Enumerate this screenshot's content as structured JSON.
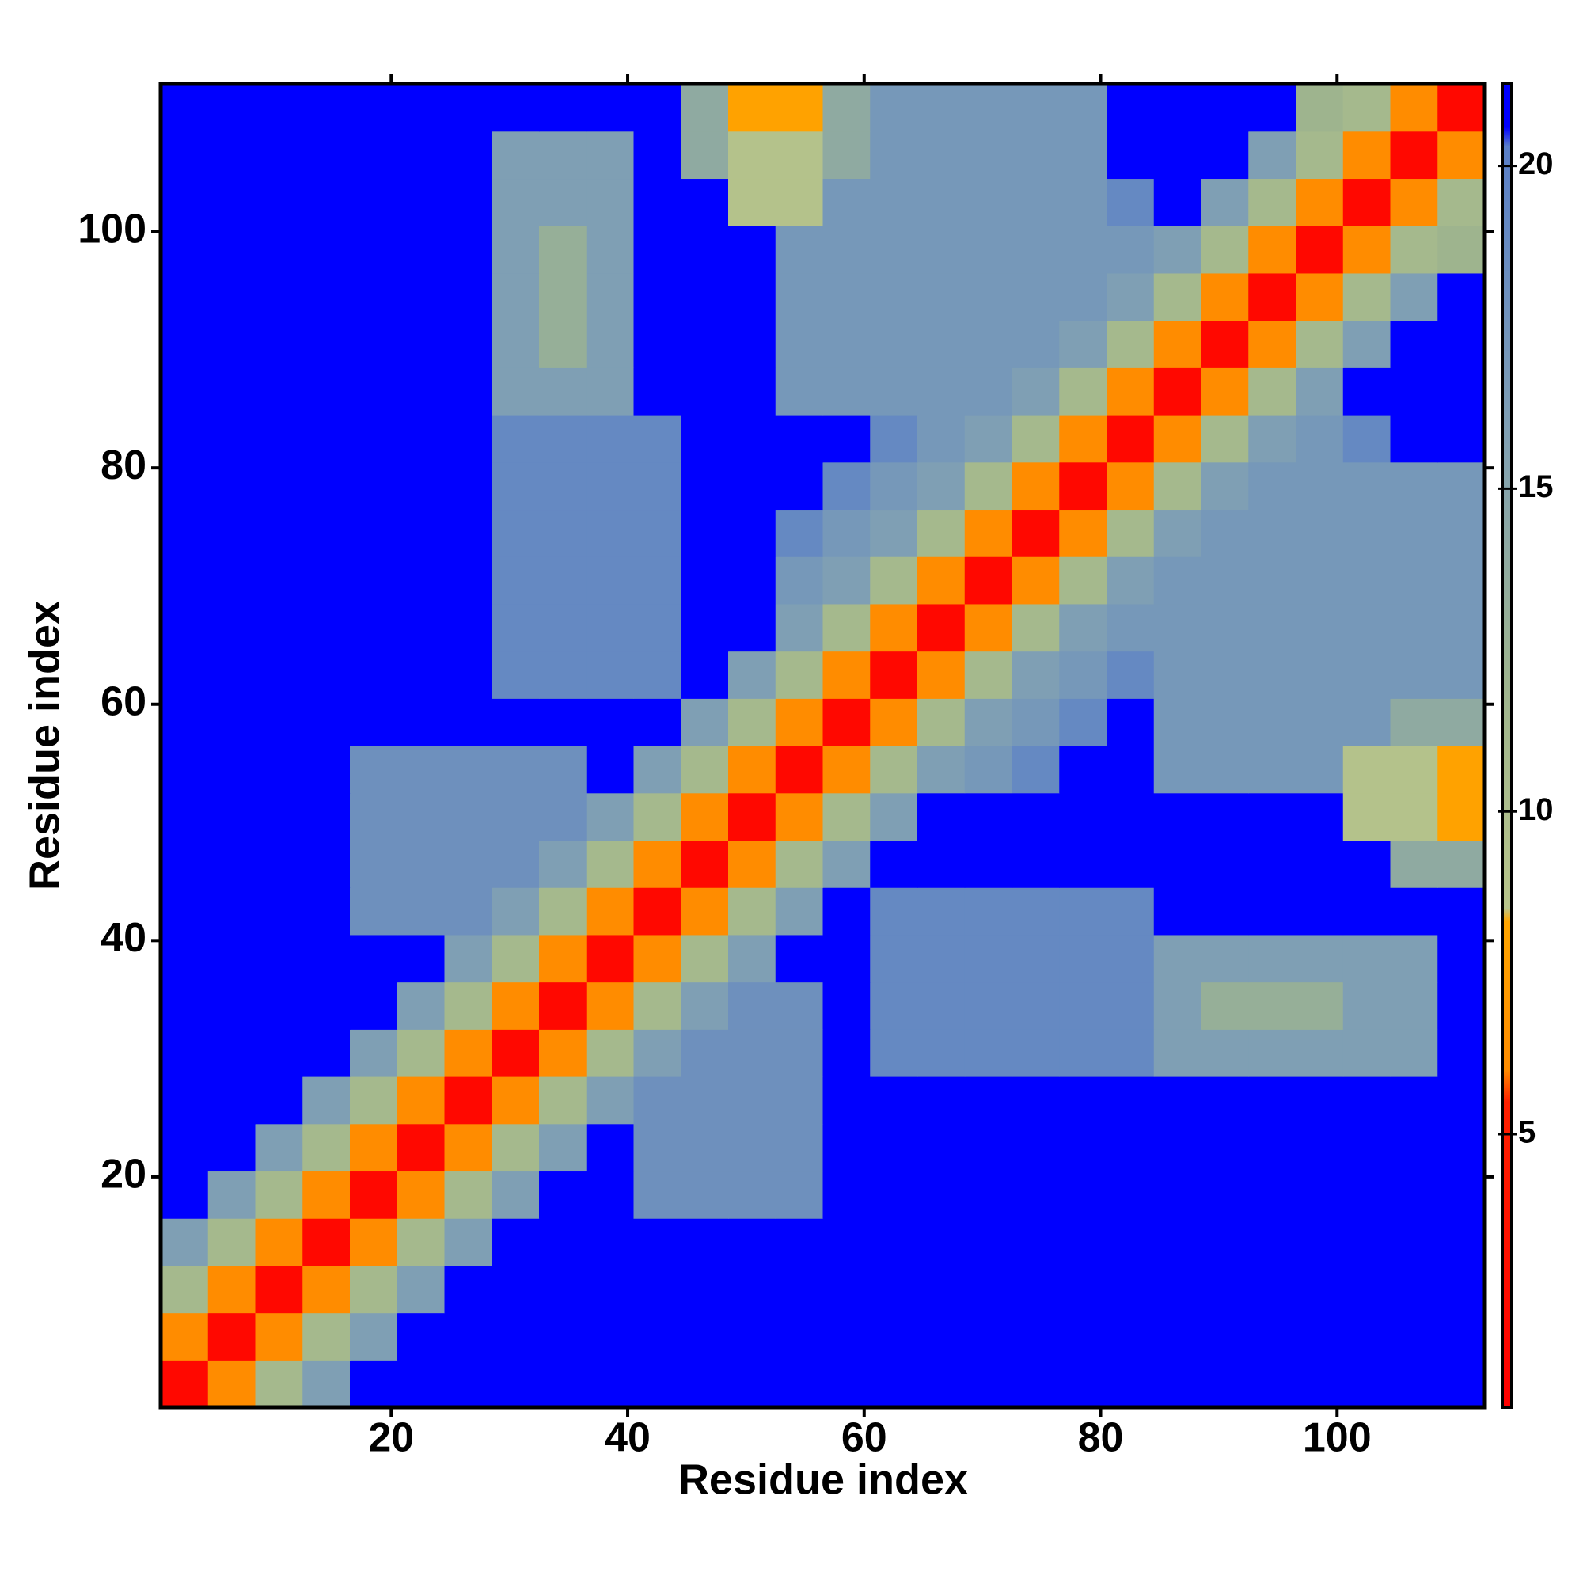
{
  "chart_data": {
    "type": "heatmap",
    "x_label": "Residue index",
    "y_label": "Residue index",
    "xlim": [
      0.5,
      112.5
    ],
    "ylim": [
      0.5,
      112.5
    ],
    "xticks": [
      20,
      40,
      60,
      80,
      100
    ],
    "yticks": [
      20,
      40,
      60,
      80,
      100
    ],
    "xbins": [
      0.5,
      4.5,
      8.5,
      12.5,
      16.5,
      20.5,
      24.5,
      28.5,
      32.5,
      36.5,
      40.5,
      44.5,
      48.5,
      52.5,
      56.5,
      60.5,
      64.5,
      68.5,
      72.5,
      76.5,
      80.5,
      84.5,
      88.5,
      92.5,
      96.5,
      100.5,
      104.5,
      108.5,
      112.5
    ],
    "ybins": [
      0.5,
      4.5,
      8.5,
      12.5,
      16.5,
      20.5,
      24.5,
      28.5,
      32.5,
      36.5,
      40.5,
      44.5,
      48.5,
      52.5,
      56.5,
      60.5,
      64.5,
      68.5,
      72.5,
      76.5,
      80.5,
      84.5,
      88.5,
      92.5,
      96.5,
      100.5,
      104.5,
      108.5,
      112.5
    ],
    "zlim": [
      0.77,
      21.27
    ],
    "zticks": [
      5,
      10,
      15,
      20
    ],
    "colorscale": [
      [
        0.77,
        "#ff0000"
      ],
      [
        5.5,
        "#ff2000"
      ],
      [
        6,
        "#ff8c00"
      ],
      [
        8.3,
        "#ffa500"
      ],
      [
        8.5,
        "#b8c48a"
      ],
      [
        12,
        "#9eb48e"
      ],
      [
        16,
        "#7f9fb4"
      ],
      [
        20.3,
        "#5a7fc8"
      ],
      [
        20.6,
        "#0000ff"
      ],
      [
        21.27,
        "#0000ff"
      ]
    ],
    "z": [
      [
        2,
        6,
        11,
        16,
        21,
        21,
        21,
        21,
        21,
        21,
        21,
        21,
        21,
        21,
        21,
        21,
        21,
        21,
        21,
        21,
        21,
        21,
        21,
        21,
        21,
        21,
        21,
        21
      ],
      [
        6,
        2,
        6,
        11,
        16,
        21,
        21,
        21,
        21,
        21,
        21,
        21,
        21,
        21,
        21,
        21,
        21,
        21,
        21,
        21,
        21,
        21,
        21,
        21,
        21,
        21,
        21,
        21
      ],
      [
        11,
        6,
        2,
        6,
        11,
        16,
        21,
        21,
        21,
        21,
        21,
        21,
        21,
        21,
        21,
        21,
        21,
        21,
        21,
        21,
        21,
        21,
        21,
        21,
        21,
        21,
        21,
        21
      ],
      [
        16,
        11,
        6,
        2,
        6,
        11,
        16,
        21,
        21,
        21,
        21,
        21,
        21,
        21,
        21,
        21,
        21,
        21,
        21,
        21,
        21,
        21,
        21,
        21,
        21,
        21,
        21,
        21
      ],
      [
        21,
        16,
        11,
        6,
        2,
        6,
        11,
        16,
        21,
        21,
        18,
        18,
        18,
        18,
        21,
        21,
        21,
        21,
        21,
        21,
        21,
        21,
        21,
        21,
        21,
        21,
        21,
        21
      ],
      [
        21,
        21,
        16,
        11,
        6,
        2,
        6,
        11,
        16,
        21,
        18,
        18,
        18,
        18,
        21,
        21,
        21,
        21,
        21,
        21,
        21,
        21,
        21,
        21,
        21,
        21,
        21,
        21
      ],
      [
        21,
        21,
        21,
        16,
        11,
        6,
        2,
        6,
        11,
        16,
        18,
        18,
        18,
        18,
        21,
        21,
        21,
        21,
        21,
        21,
        21,
        21,
        21,
        21,
        21,
        21,
        21,
        21
      ],
      [
        21,
        21,
        21,
        21,
        16,
        11,
        6,
        2,
        6,
        11,
        16,
        18,
        18,
        18,
        21,
        19,
        19,
        19,
        19,
        19,
        19,
        16,
        16,
        16,
        16,
        16,
        16,
        21
      ],
      [
        21,
        21,
        21,
        21,
        21,
        16,
        11,
        6,
        2,
        6,
        11,
        16,
        18,
        18,
        21,
        19,
        19,
        19,
        19,
        19,
        19,
        16,
        13,
        13,
        13,
        16,
        16,
        21
      ],
      [
        21,
        21,
        21,
        21,
        21,
        21,
        16,
        11,
        6,
        2,
        6,
        11,
        16,
        21,
        21,
        19,
        19,
        19,
        19,
        19,
        19,
        16,
        16,
        16,
        16,
        16,
        16,
        21
      ],
      [
        21,
        21,
        21,
        21,
        18,
        18,
        18,
        16,
        11,
        6,
        2,
        6,
        11,
        16,
        21,
        19,
        19,
        19,
        19,
        19,
        19,
        21,
        21,
        21,
        21,
        21,
        21,
        21
      ],
      [
        21,
        21,
        21,
        21,
        18,
        18,
        18,
        18,
        16,
        11,
        6,
        2,
        6,
        11,
        16,
        21,
        21,
        21,
        21,
        21,
        21,
        21,
        21,
        21,
        21,
        21,
        14,
        14
      ],
      [
        21,
        21,
        21,
        21,
        18,
        18,
        18,
        18,
        18,
        16,
        11,
        6,
        2,
        6,
        11,
        16,
        21,
        21,
        21,
        21,
        21,
        21,
        21,
        21,
        21,
        9,
        9,
        8
      ],
      [
        21,
        21,
        21,
        21,
        18,
        18,
        18,
        18,
        18,
        21,
        16,
        11,
        6,
        2,
        6,
        11,
        16,
        17,
        19,
        21,
        21,
        17,
        17,
        17,
        17,
        9,
        9,
        8
      ],
      [
        21,
        21,
        21,
        21,
        21,
        21,
        21,
        21,
        21,
        21,
        21,
        16,
        11,
        6,
        2,
        6,
        11,
        16,
        17,
        19,
        21,
        17,
        17,
        17,
        17,
        17,
        14,
        14
      ],
      [
        21,
        21,
        21,
        21,
        21,
        21,
        21,
        19,
        19,
        19,
        19,
        21,
        16,
        11,
        6,
        2,
        6,
        11,
        16,
        17,
        19,
        17,
        17,
        17,
        17,
        17,
        17,
        17
      ],
      [
        21,
        21,
        21,
        21,
        21,
        21,
        21,
        19,
        19,
        19,
        19,
        21,
        21,
        16,
        11,
        6,
        2,
        6,
        11,
        16,
        17,
        17,
        17,
        17,
        17,
        17,
        17,
        17
      ],
      [
        21,
        21,
        21,
        21,
        21,
        21,
        21,
        19,
        19,
        19,
        19,
        21,
        21,
        17,
        16,
        11,
        6,
        2,
        6,
        11,
        16,
        17,
        17,
        17,
        17,
        17,
        17,
        17
      ],
      [
        21,
        21,
        21,
        21,
        21,
        21,
        21,
        19,
        19,
        19,
        19,
        21,
        21,
        19,
        17,
        16,
        11,
        6,
        2,
        6,
        11,
        16,
        17,
        17,
        17,
        17,
        17,
        17
      ],
      [
        21,
        21,
        21,
        21,
        21,
        21,
        21,
        19,
        19,
        19,
        19,
        21,
        21,
        21,
        19,
        17,
        16,
        11,
        6,
        2,
        6,
        11,
        16,
        17,
        17,
        17,
        17,
        17
      ],
      [
        21,
        21,
        21,
        21,
        21,
        21,
        21,
        19,
        19,
        19,
        19,
        21,
        21,
        21,
        21,
        19,
        17,
        16,
        11,
        6,
        2,
        6,
        11,
        16,
        17,
        19,
        21,
        21
      ],
      [
        21,
        21,
        21,
        21,
        21,
        21,
        21,
        16,
        16,
        16,
        21,
        21,
        21,
        17,
        17,
        17,
        17,
        17,
        16,
        11,
        6,
        2,
        6,
        11,
        16,
        21,
        21,
        21
      ],
      [
        21,
        21,
        21,
        21,
        21,
        21,
        21,
        16,
        13,
        16,
        21,
        21,
        21,
        17,
        17,
        17,
        17,
        17,
        17,
        16,
        11,
        6,
        2,
        6,
        11,
        16,
        21,
        21
      ],
      [
        21,
        21,
        21,
        21,
        21,
        21,
        21,
        16,
        13,
        16,
        21,
        21,
        21,
        17,
        17,
        17,
        17,
        17,
        17,
        17,
        16,
        11,
        6,
        2,
        6,
        11,
        16,
        21
      ],
      [
        21,
        21,
        21,
        21,
        21,
        21,
        21,
        16,
        13,
        16,
        21,
        21,
        21,
        17,
        17,
        17,
        17,
        17,
        17,
        17,
        17,
        16,
        11,
        6,
        2,
        6,
        11,
        12
      ],
      [
        21,
        21,
        21,
        21,
        21,
        21,
        21,
        16,
        16,
        16,
        21,
        21,
        9,
        9,
        17,
        17,
        17,
        17,
        17,
        17,
        19,
        21,
        16,
        11,
        6,
        2,
        6,
        11
      ],
      [
        21,
        21,
        21,
        21,
        21,
        21,
        21,
        16,
        16,
        16,
        21,
        14,
        9,
        9,
        14,
        17,
        17,
        17,
        17,
        17,
        21,
        21,
        21,
        16,
        11,
        6,
        2,
        6
      ],
      [
        21,
        21,
        21,
        21,
        21,
        21,
        21,
        21,
        21,
        21,
        21,
        14,
        8,
        8,
        14,
        17,
        17,
        17,
        17,
        17,
        21,
        21,
        21,
        21,
        12,
        11,
        6,
        2
      ]
    ]
  }
}
